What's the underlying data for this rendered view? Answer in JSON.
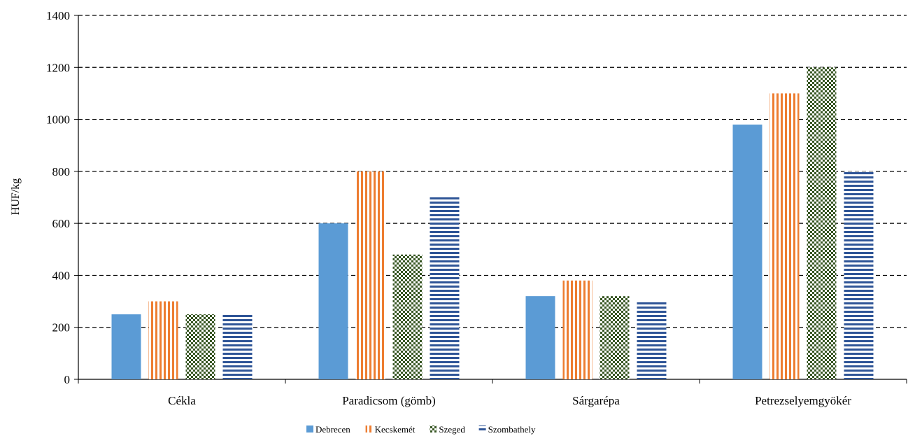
{
  "chart_data": {
    "type": "bar",
    "categories": [
      "Cékla",
      "Paradicsom (gömb)",
      "Sárgarépa",
      "Petrezselyemgyökér"
    ],
    "series": [
      {
        "name": "Debrecen",
        "values": [
          250,
          600,
          320,
          980
        ],
        "color": "#5b9bd5",
        "pattern": "solid"
      },
      {
        "name": "Kecskemét",
        "values": [
          300,
          800,
          380,
          1100
        ],
        "color": "#ed7d31",
        "pattern": "vertical-stripes"
      },
      {
        "name": "Szeged",
        "values": [
          250,
          480,
          320,
          1200
        ],
        "color": "#375623",
        "pattern": "checker"
      },
      {
        "name": "Szombathely",
        "values": [
          250,
          700,
          300,
          800
        ],
        "color": "#2f5597",
        "pattern": "horizontal-stripes"
      }
    ],
    "title": "",
    "xlabel": "",
    "ylabel": "HUF/kg",
    "ylim": [
      0,
      1400
    ],
    "yticks": [
      0,
      200,
      400,
      600,
      800,
      1000,
      1200,
      1400
    ],
    "grid": true,
    "legend_position": "bottom"
  }
}
